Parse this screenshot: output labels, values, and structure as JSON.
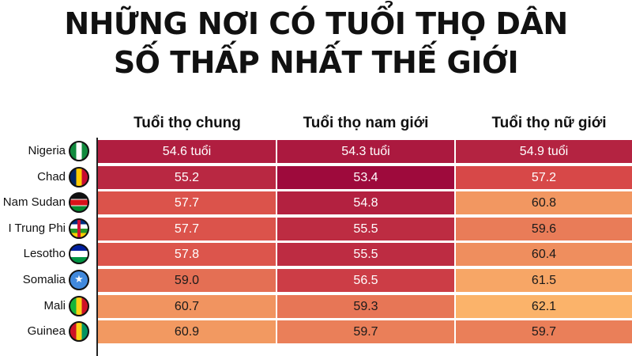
{
  "title": {
    "line1": "NHỮNG NƠI CÓ TUỔI THỌ DÂN",
    "line2": "SỐ THẤP NHẤT THẾ GIỚI"
  },
  "chart_data": {
    "type": "table",
    "columns": [
      "Tuổi thọ chung",
      "Tuổi thọ nam giới",
      "Tuổi thọ nữ giới"
    ],
    "rows": [
      {
        "country": "Nigeria",
        "flag": "nigeria-flag-icon",
        "display": [
          "54.6 tuổi",
          "54.3 tuổi",
          "54.9 tuổi"
        ],
        "values": [
          54.6,
          54.3,
          54.9
        ]
      },
      {
        "country": "Chad",
        "flag": "chad-flag-icon",
        "display": [
          "55.2",
          "53.4",
          "57.2"
        ],
        "values": [
          55.2,
          53.4,
          57.2
        ]
      },
      {
        "country": "Nam Sudan",
        "flag": "south-sudan-flag-icon",
        "display": [
          "57.7",
          "54.8",
          "60.8"
        ],
        "values": [
          57.7,
          54.8,
          60.8
        ]
      },
      {
        "country": "I Trung Phi",
        "flag": "central-african-republic-flag-icon",
        "display": [
          "57.7",
          "55.5",
          "59.6"
        ],
        "values": [
          57.7,
          55.5,
          59.6
        ]
      },
      {
        "country": "Lesotho",
        "flag": "lesotho-flag-icon",
        "display": [
          "57.8",
          "55.5",
          "60.4"
        ],
        "values": [
          57.8,
          55.5,
          60.4
        ]
      },
      {
        "country": "Somalia",
        "flag": "somalia-flag-icon",
        "display": [
          "59.0",
          "56.5",
          "61.5"
        ],
        "values": [
          59.0,
          56.5,
          61.5
        ]
      },
      {
        "country": "Mali",
        "flag": "mali-flag-icon",
        "display": [
          "60.7",
          "59.3",
          "62.1"
        ],
        "values": [
          60.7,
          59.3,
          62.1
        ]
      },
      {
        "country": "Guinea",
        "flag": "guinea-flag-icon",
        "display": [
          "60.9",
          "59.7",
          "59.7"
        ],
        "values": [
          60.9,
          59.7,
          59.7
        ]
      }
    ],
    "color_scale": {
      "low": "#9e0a3c",
      "mid": "#d84a48",
      "high": "#fbb36a"
    }
  }
}
